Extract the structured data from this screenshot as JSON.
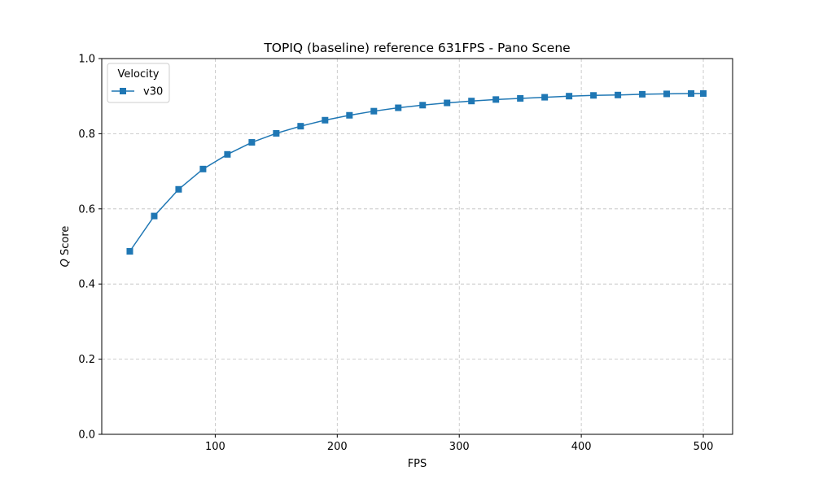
{
  "chart_data": {
    "type": "line",
    "title": "TOPIQ (baseline) reference 631FPS - Pano Scene",
    "xlabel": "FPS",
    "ylabel_italic": "Q",
    "ylabel_rest": " Score",
    "xlim": [
      7,
      524
    ],
    "ylim": [
      0.0,
      1.0
    ],
    "x_ticks": [
      100,
      200,
      300,
      400,
      500
    ],
    "x_tick_labels": [
      "100",
      "200",
      "300",
      "400",
      "500"
    ],
    "y_ticks": [
      0.0,
      0.2,
      0.4,
      0.6,
      0.8,
      1.0
    ],
    "y_tick_labels": [
      "0.0",
      "0.2",
      "0.4",
      "0.6",
      "0.8",
      "1.0"
    ],
    "grid": true,
    "legend": {
      "title": "Velocity",
      "placement": "top-left"
    },
    "series": [
      {
        "name": "v30",
        "color": "#1f77b4",
        "marker": "square",
        "x": [
          30,
          50,
          70,
          90,
          110,
          130,
          150,
          170,
          190,
          210,
          230,
          250,
          270,
          290,
          310,
          330,
          350,
          370,
          390,
          410,
          430,
          450,
          470,
          490,
          500
        ],
        "y": [
          0.487,
          0.581,
          0.652,
          0.706,
          0.745,
          0.777,
          0.801,
          0.82,
          0.836,
          0.849,
          0.86,
          0.869,
          0.876,
          0.882,
          0.887,
          0.891,
          0.894,
          0.897,
          0.9,
          0.902,
          0.903,
          0.905,
          0.906,
          0.907,
          0.907
        ]
      }
    ]
  }
}
